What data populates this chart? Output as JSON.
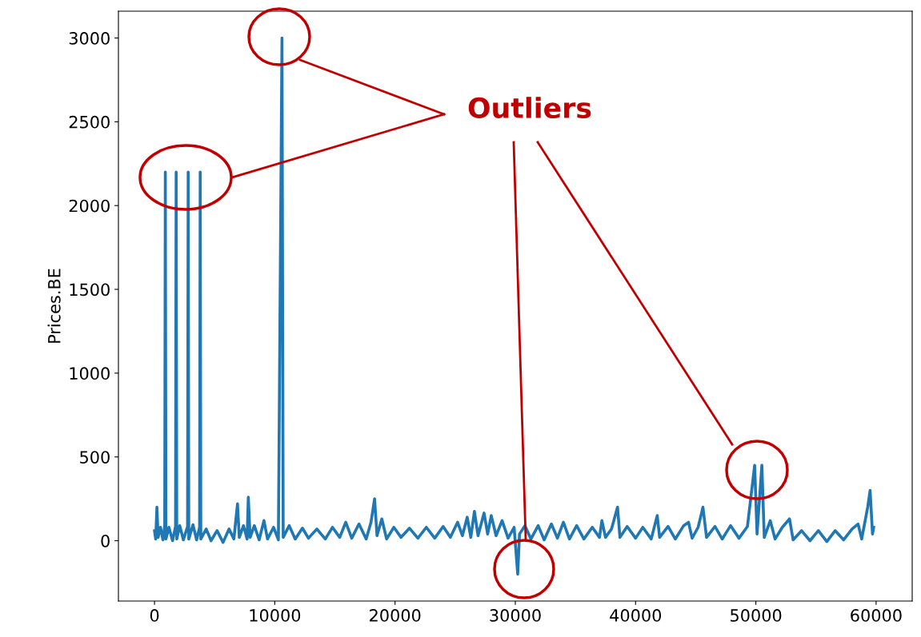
{
  "chart_data": {
    "type": "line",
    "ylabel": "Prices.BE",
    "annotations": [
      "Outliers"
    ],
    "xlim": [
      -3000,
      63000
    ],
    "xticks": [
      0,
      10000,
      20000,
      30000,
      40000,
      50000,
      60000
    ],
    "ylim": [
      -360,
      3160
    ],
    "yticks": [
      0,
      500,
      1000,
      1500,
      2000,
      2500,
      3000
    ],
    "grid": false,
    "legend": false,
    "series": [
      {
        "color": "#1f77b4",
        "x": [
          0,
          100,
          200,
          300,
          500,
          700,
          850,
          900,
          950,
          1200,
          1500,
          1750,
          1800,
          1850,
          2100,
          2400,
          2750,
          2800,
          2850,
          3200,
          3500,
          3750,
          3800,
          3850,
          4300,
          4700,
          5200,
          5700,
          6200,
          6600,
          6900,
          7050,
          7400,
          7700,
          7800,
          7950,
          8300,
          8700,
          9100,
          9400,
          9900,
          10300,
          10600,
          10700,
          11200,
          11700,
          12300,
          12800,
          13500,
          14200,
          14800,
          15400,
          15900,
          16400,
          17000,
          17600,
          18000,
          18300,
          18500,
          18900,
          19300,
          19900,
          20500,
          21200,
          21900,
          22600,
          23300,
          24000,
          24600,
          25200,
          25600,
          26000,
          26300,
          26600,
          26900,
          27400,
          27700,
          28000,
          28400,
          28900,
          29400,
          29900,
          30200,
          30350,
          30800,
          31300,
          31900,
          32400,
          33000,
          33500,
          34000,
          34500,
          35100,
          35700,
          36400,
          37000,
          37200,
          37500,
          38000,
          38500,
          38700,
          39300,
          40000,
          40600,
          41300,
          41800,
          42000,
          42700,
          43300,
          44000,
          44400,
          44700,
          45200,
          45600,
          45900,
          46600,
          47200,
          47900,
          48600,
          49300,
          49900,
          50100,
          50500,
          50700,
          51200,
          51600,
          52200,
          52800,
          53100,
          53800,
          54500,
          55200,
          55900,
          56600,
          57300,
          58000,
          58500,
          58800,
          59300,
          59500,
          59700,
          59800
        ],
        "values": [
          60,
          10,
          200,
          20,
          80,
          5,
          90,
          2200,
          10,
          80,
          0,
          85,
          2200,
          10,
          90,
          5,
          85,
          2200,
          10,
          95,
          5,
          80,
          2200,
          10,
          70,
          0,
          60,
          -10,
          70,
          10,
          220,
          20,
          90,
          10,
          260,
          20,
          90,
          5,
          120,
          10,
          80,
          5,
          3000,
          20,
          90,
          10,
          75,
          15,
          70,
          10,
          80,
          20,
          110,
          15,
          100,
          10,
          110,
          250,
          30,
          130,
          10,
          80,
          20,
          75,
          15,
          80,
          15,
          85,
          20,
          110,
          30,
          140,
          20,
          175,
          30,
          165,
          40,
          150,
          30,
          120,
          15,
          80,
          -200,
          40,
          90,
          10,
          90,
          5,
          100,
          15,
          110,
          10,
          90,
          10,
          80,
          20,
          120,
          20,
          70,
          200,
          20,
          85,
          15,
          80,
          10,
          150,
          20,
          85,
          10,
          90,
          110,
          15,
          80,
          200,
          20,
          85,
          10,
          90,
          15,
          85,
          450,
          40,
          450,
          20,
          120,
          10,
          80,
          130,
          5,
          60,
          0,
          60,
          -5,
          60,
          5,
          70,
          100,
          10,
          200,
          300,
          40,
          80
        ]
      }
    ]
  }
}
